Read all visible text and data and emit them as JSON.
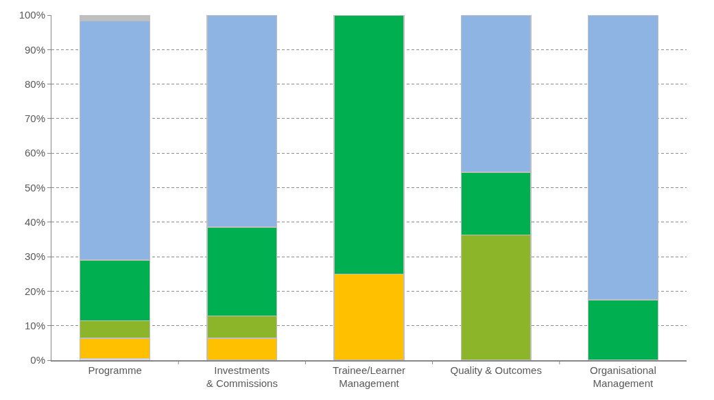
{
  "chart_data": {
    "type": "bar",
    "stacked": true,
    "categories": [
      "Programme",
      "Investments & Commissions",
      "Trainee/Learner Management",
      "Quality & Outcomes",
      "Organisational Management"
    ],
    "series": [
      {
        "color": "#f2f2f2",
        "values": [
          0.5,
          0,
          0,
          0,
          0
        ]
      },
      {
        "color": "#ffc000",
        "values": [
          5.9,
          6.4,
          25,
          0,
          0
        ]
      },
      {
        "color": "#8cb52a",
        "values": [
          5,
          6.4,
          0,
          36.3,
          0
        ]
      },
      {
        "color": "#00b050",
        "values": [
          17.6,
          25.8,
          75,
          18.2,
          17.5
        ]
      },
      {
        "color": "#8eb4e3",
        "values": [
          69.3,
          61.4,
          0,
          45.5,
          82.5
        ]
      },
      {
        "color": "#bfbfbf",
        "values": [
          1.7,
          0,
          0,
          0,
          0
        ]
      }
    ],
    "ylim": [
      0,
      100
    ],
    "yticks": [
      {
        "value": 0,
        "label": "0%"
      },
      {
        "value": 10,
        "label": "10%"
      },
      {
        "value": 20,
        "label": "20%"
      },
      {
        "value": 30,
        "label": "30%"
      },
      {
        "value": 40,
        "label": "40%"
      },
      {
        "value": 50,
        "label": "50%"
      },
      {
        "value": 60,
        "label": "60%"
      },
      {
        "value": 70,
        "label": "70%"
      },
      {
        "value": 80,
        "label": "80%"
      },
      {
        "value": 90,
        "label": "90%"
      },
      {
        "value": 100,
        "label": "100%"
      }
    ],
    "grid": "y"
  }
}
